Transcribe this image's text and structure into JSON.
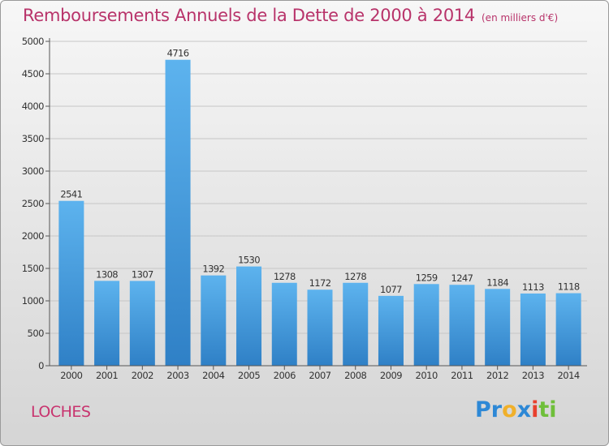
{
  "title": "Remboursements Annuels de la Dette de 2000 à 2014",
  "unit_note": "(en milliers d'€)",
  "city": "LOCHES",
  "logo": {
    "letters": [
      "P",
      "r",
      "o",
      "x",
      "i",
      "t",
      "i"
    ],
    "colors": [
      "#2d88d6",
      "#2d88d6",
      "#f0b02a",
      "#2d88d6",
      "#e8402e",
      "#6fbf3a",
      "#6fbf3a"
    ]
  },
  "colors": {
    "bar": "#4a9fe0",
    "bar_top": "#5cb0ec",
    "bar_bottom": "#2f7fc4",
    "title": "#b8336a"
  },
  "chart_data": {
    "type": "bar",
    "title": "Remboursements Annuels de la Dette de 2000 à 2014",
    "xlabel": "",
    "ylabel": "",
    "ylim": [
      0,
      5000
    ],
    "yticks": [
      0,
      500,
      1000,
      1500,
      2000,
      2500,
      3000,
      3500,
      4000,
      4500,
      5000
    ],
    "grid": true,
    "categories": [
      "2000",
      "2001",
      "2002",
      "2003",
      "2004",
      "2005",
      "2006",
      "2007",
      "2008",
      "2009",
      "2010",
      "2011",
      "2012",
      "2013",
      "2014"
    ],
    "values": [
      2541,
      1308,
      1307,
      4716,
      1392,
      1530,
      1278,
      1172,
      1278,
      1077,
      1259,
      1247,
      1184,
      1113,
      1118
    ]
  }
}
